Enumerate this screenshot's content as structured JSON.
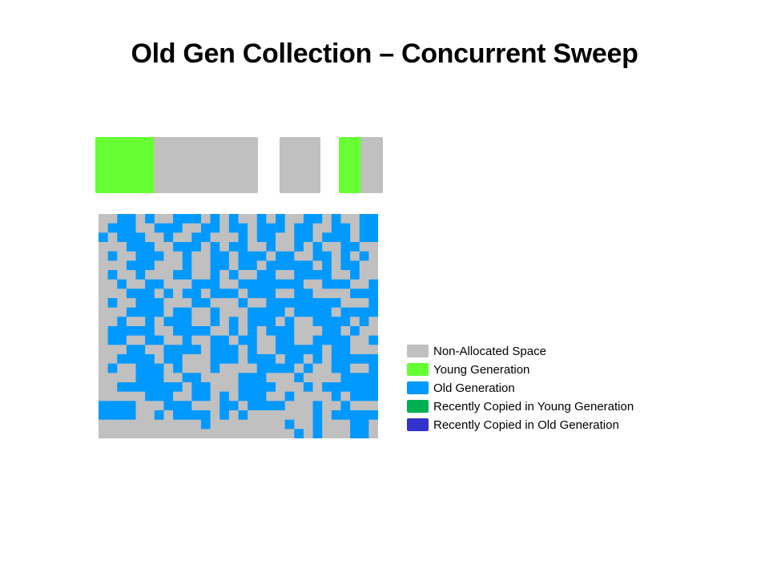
{
  "title": "Old Gen Collection – Concurrent Sweep",
  "colors": {
    "non_allocated": "#c0c0c0",
    "young": "#66ff33",
    "old": "#0099ff",
    "recent_young": "#00b050",
    "recent_old": "#3333cc"
  },
  "young_generation_blocks": [
    {
      "segments": [
        {
          "type": "young",
          "share": 0.36
        },
        {
          "type": "non_allocated",
          "share": 0.64
        }
      ]
    },
    {
      "segments": [
        {
          "type": "non_allocated",
          "share": 1.0
        }
      ]
    },
    {
      "segments": [
        {
          "type": "young",
          "share": 0.5
        },
        {
          "type": "non_allocated",
          "share": 0.5
        }
      ]
    }
  ],
  "old_generation_grid": {
    "columns": 30,
    "rows": 24,
    "cells": [
      "GGBBGBGGBBBGBGBGGBGBGGBBGBGGBB",
      "GBBBGGBBBGGBBGBBGBBBGBBGGBBGBB",
      "BGBBBGGBGGBBGGGBGBBGGBBGBBBGBB",
      "GGGBBBGGBBBGBGBBGGBGGBGBGGBBGG",
      "GBGGBBBGGBGGBBGBBBGBBGGBBGBGBG",
      "GGGBBBGGGBGGBBGBBGBBBBBGBGBBGG",
      "GBGGBGGGBBGGBGBGGBBGGBBBBGGBGG",
      "GGBGGBBGGGBBBGGBBBBBBBGGBBBGGB",
      "GGGBBBGBGBBGBBBGBBBGGBBGGGGBBB",
      "GBGGBBBGGGBBGGGBGGBBBBBBBBGGGB",
      "GGGBBBBGBBGGBGGGBBBBGBBBBGBBBB",
      "GGBGGBGBBBGGBGBGBBBGBGGBBBBGBG",
      "GBBBBBGGBBBBGGBGBGBBBGGGBBGBGG",
      "GBBGGBBGGBGGBBGBBGGBBGGBBBBGGB",
      "GGGBBGGBBBBGBBBGBGGBBBBBGBBGGG",
      "GGBBBBGBBGGGBBBGBBBGBBGBGBBBBB",
      "GBGGBBBGBGGGBGGGGBBBBGBGGBBGGB",
      "GGGGBBBGGBBGGGGBBBGGGBGGGGBBBB",
      "GGBBBBBBBGBBGGGBBBBGGGBGBBBBBB",
      "GGGGGBBBGGBBGBGBBBGGBGGGGBGBBB",
      "BBBBGGGBBBGGGBBGBBBBGGGBGGBGGG",
      "BBBBGGBGBBBBGBGBGGGGGGGBGBBBBB",
      "GGGGGGGGGGGBGGGGGGGGBGGBGGGBBG",
      "GGGGGGGGGGGGGGGGGGGGGBGBGGGBBG"
    ]
  },
  "legend": [
    {
      "color": "#c0c0c0",
      "label": "Non-Allocated Space"
    },
    {
      "color": "#66ff33",
      "label": "Young Generation"
    },
    {
      "color": "#0099ff",
      "label": "Old Generation"
    },
    {
      "color": "#00b050",
      "label": "Recently Copied in Young Generation"
    },
    {
      "color": "#3333cc",
      "label": "Recently Copied in Old Generation"
    }
  ]
}
